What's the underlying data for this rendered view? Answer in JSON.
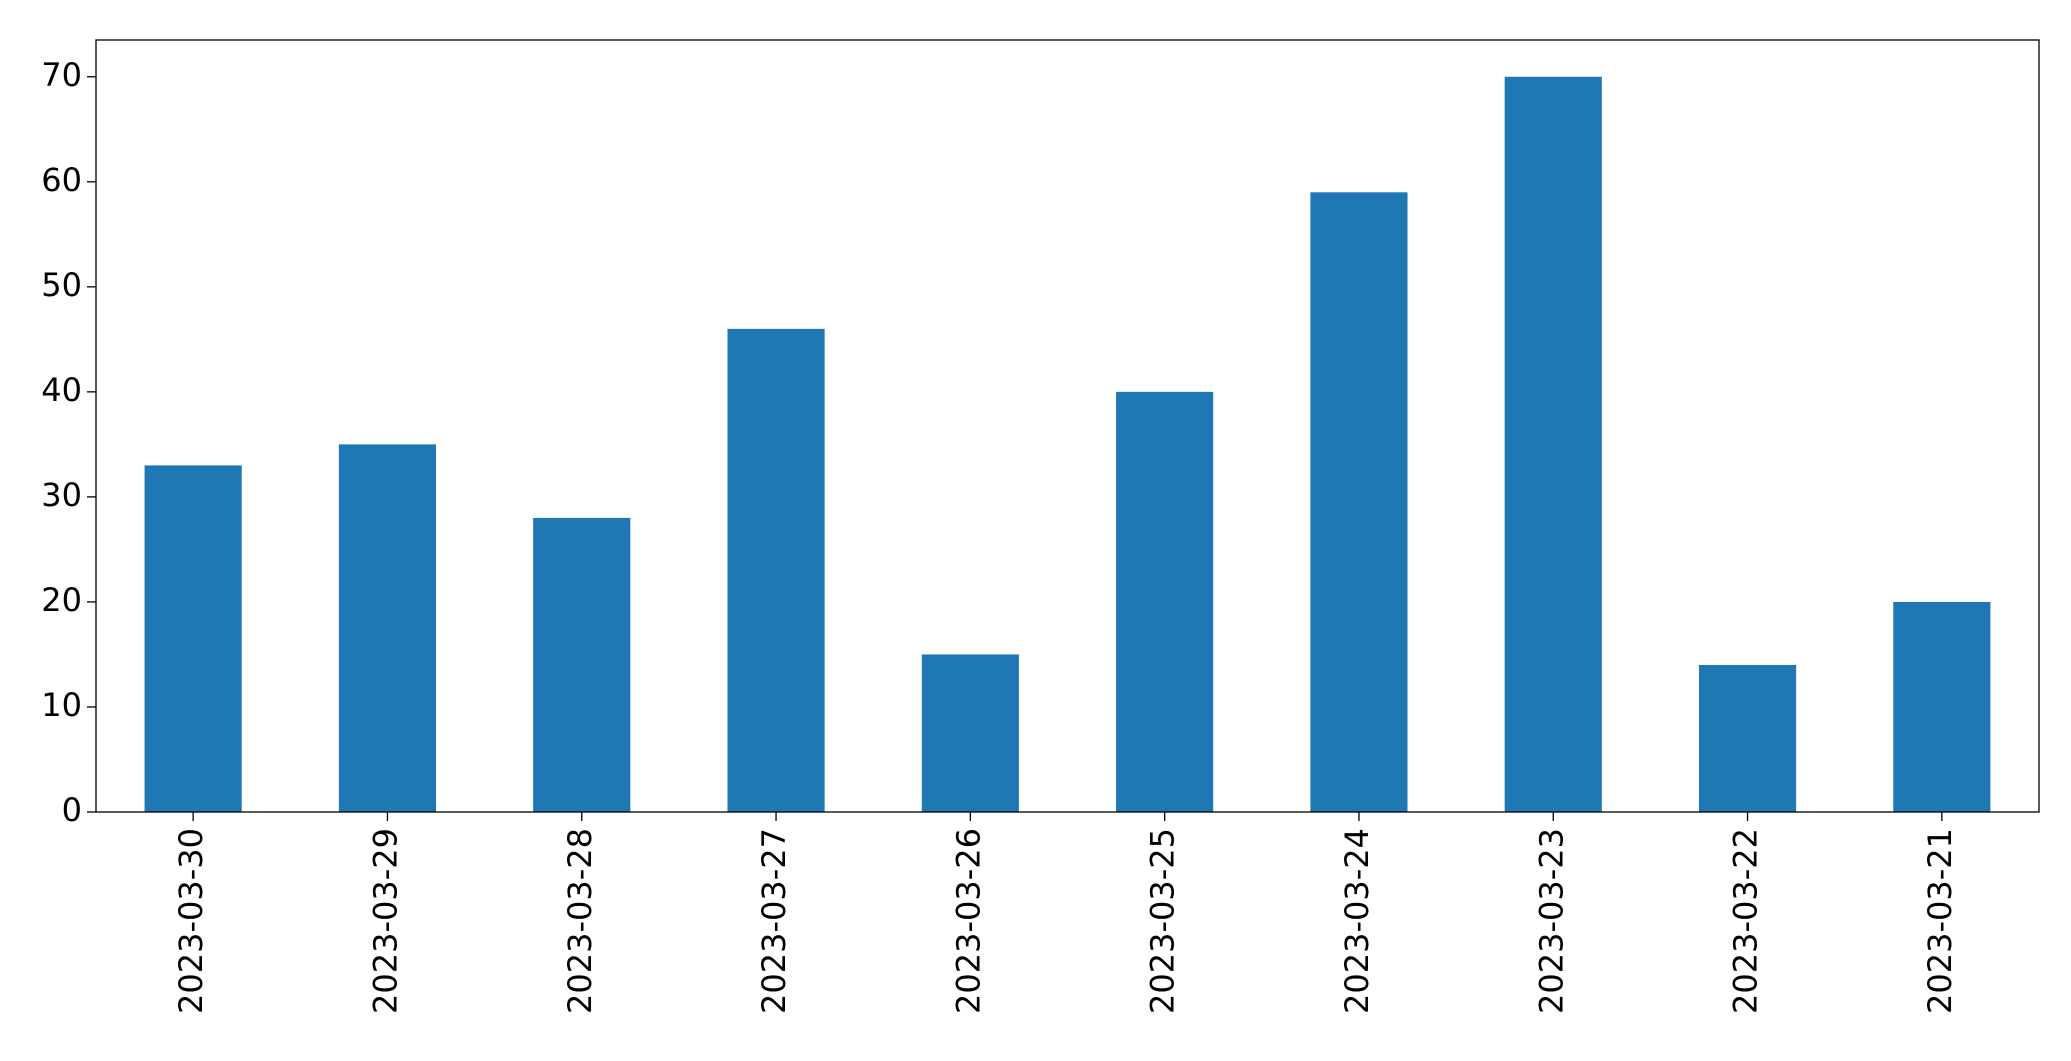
{
  "chart_data": {
    "type": "bar",
    "categories": [
      "2023-03-30",
      "2023-03-29",
      "2023-03-28",
      "2023-03-27",
      "2023-03-26",
      "2023-03-25",
      "2023-03-24",
      "2023-03-23",
      "2023-03-22",
      "2023-03-21"
    ],
    "values": [
      33,
      35,
      28,
      46,
      15,
      40,
      59,
      70,
      14,
      20
    ],
    "color": "#1f77b4",
    "ylim": [
      0,
      73.5
    ],
    "yticks": [
      0,
      10,
      20,
      30,
      40,
      50,
      60,
      70
    ],
    "grid": false
  }
}
